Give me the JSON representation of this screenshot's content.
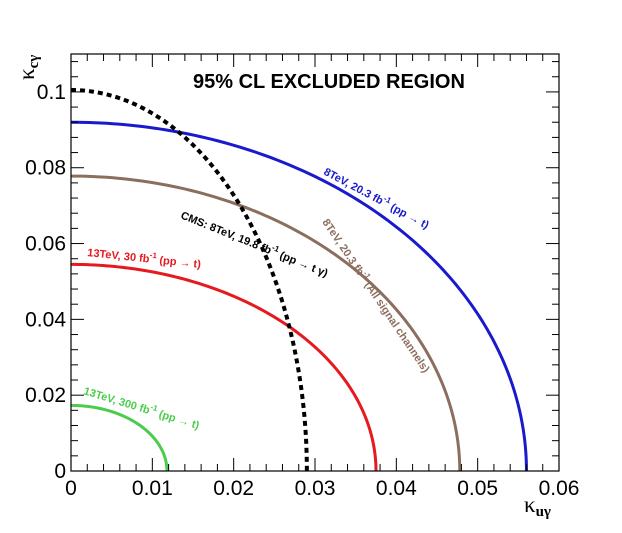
{
  "chart_data": {
    "type": "line",
    "title": "95% CL EXCLUDED REGION",
    "xlabel": "κ",
    "xlabel_sub": "uγ",
    "ylabel": "κ",
    "ylabel_sub": "cγ",
    "xlim": [
      0,
      0.06
    ],
    "ylim": [
      0,
      0.11
    ],
    "x_ticks": [
      0,
      0.01,
      0.02,
      0.03,
      0.04,
      0.05,
      0.06
    ],
    "x_tick_labels": [
      "0",
      "0.01",
      "0.02",
      "0.03",
      "0.04",
      "0.05",
      "0.06"
    ],
    "y_ticks": [
      0,
      0.02,
      0.04,
      0.06,
      0.08,
      0.1
    ],
    "y_tick_labels": [
      "0",
      "0.02",
      "0.04",
      "0.06",
      "0.08",
      "0.1"
    ],
    "series": [
      {
        "name": "8TeV, 20.3 fb-1 (pp → t)",
        "label_parts": [
          "8TeV, 20.3 fb",
          "-1",
          " (pp → t)"
        ],
        "shape": "ellipse",
        "x_intercept": 0.056,
        "y_intercept": 0.092,
        "color": "#1a1acc",
        "style": "solid"
      },
      {
        "name": "8TeV, 20.3 fb-1 (All signal channels)",
        "label_parts": [
          "8TeV, 20.3 fb",
          "-1",
          " (All signal channels)"
        ],
        "shape": "ellipse",
        "x_intercept": 0.0478,
        "y_intercept": 0.0778,
        "color": "#8c6e5f",
        "style": "solid"
      },
      {
        "name": "13TeV, 30 fb-1 (pp → t)",
        "label_parts": [
          "13TeV, 30 fb",
          "-1",
          " (pp → t)"
        ],
        "shape": "ellipse",
        "x_intercept": 0.0375,
        "y_intercept": 0.0545,
        "color": "#e6191e",
        "style": "solid"
      },
      {
        "name": "13TeV, 300 fb-1 (pp → t)",
        "label_parts": [
          "13TeV, 300 fb",
          "-1",
          " (pp → t)"
        ],
        "shape": "ellipse",
        "x_intercept": 0.0118,
        "y_intercept": 0.0173,
        "color": "#4ccc4c",
        "style": "solid"
      },
      {
        "name": "CMS: 8TeV, 19.8 fb-1 (pp → t γ)",
        "label_parts": [
          "CMS: 8TeV, 19.8 fb",
          "-1",
          " (pp → t γ)"
        ],
        "shape": "ellipse",
        "x_intercept": 0.029,
        "y_intercept": 0.1005,
        "color": "#000000",
        "style": "dashed"
      }
    ]
  }
}
